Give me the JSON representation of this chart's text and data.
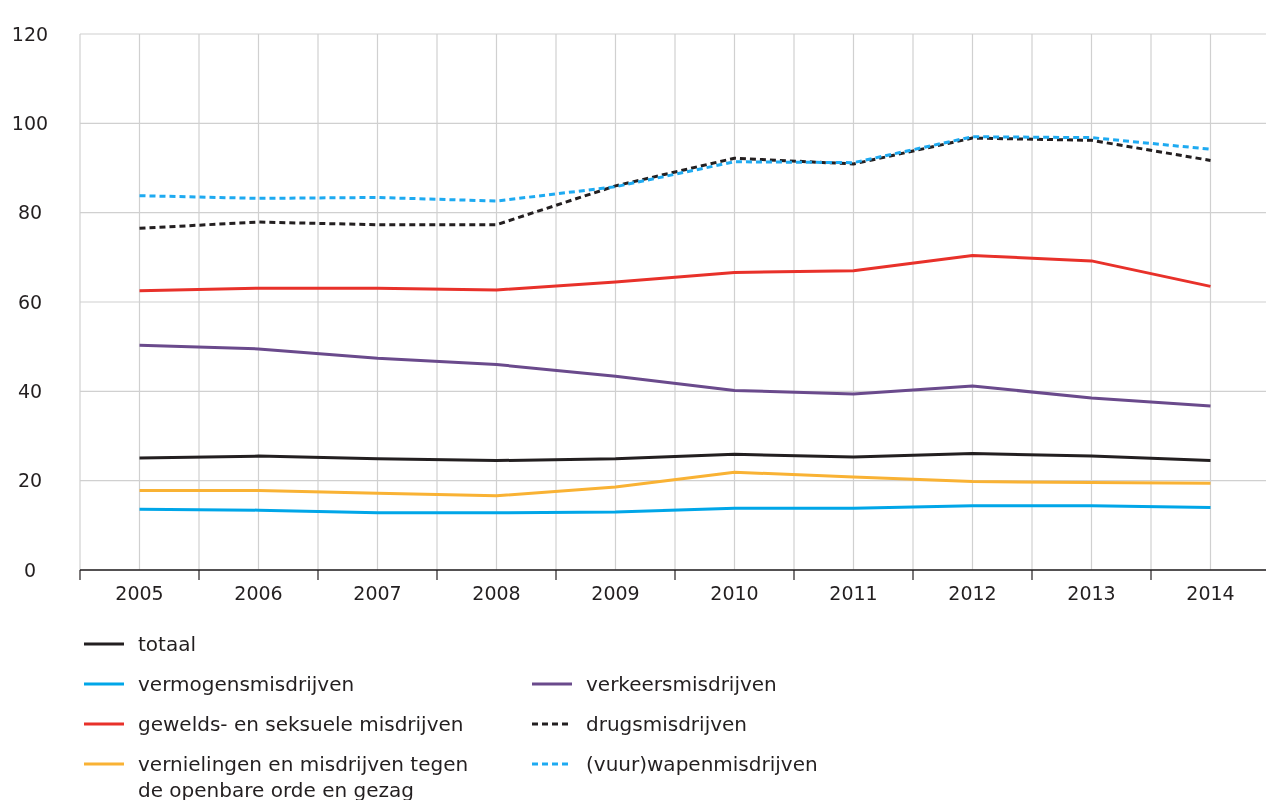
{
  "chart_data": {
    "type": "line",
    "x": [
      2005,
      2006,
      2007,
      2008,
      2009,
      2010,
      2011,
      2012,
      2013,
      2014
    ],
    "xlim": [
      2004.5,
      2014.5
    ],
    "xticks": [
      {
        "value": 2004.5,
        "label": null
      },
      2005,
      {
        "value": 2005.5,
        "label": null
      },
      2006,
      {
        "value": 2006.5,
        "label": null
      },
      2007,
      {
        "value": 2007.5,
        "label": null
      },
      2008,
      {
        "value": 2008.5,
        "label": null
      },
      2009,
      {
        "value": 2009.5,
        "label": null
      },
      2010,
      {
        "value": 2010.5,
        "label": null
      },
      2011,
      {
        "value": 2011.5,
        "label": null
      },
      2012,
      {
        "value": 2012.5,
        "label": null
      },
      2013,
      {
        "value": 2013.5,
        "label": null
      },
      2014,
      {
        "value": 2014.5,
        "label": null
      }
    ],
    "ylim": [
      0,
      120
    ],
    "yticks": [
      0,
      20,
      40,
      60,
      80,
      100,
      120
    ],
    "grid": true,
    "legend": "bottom",
    "marker": "none",
    "series": [
      {
        "name": "totaal",
        "color": "#231f20",
        "values": [
          25.1,
          25.5,
          24.9,
          24.5,
          24.9,
          25.9,
          25.3,
          26.1,
          25.5,
          24.5
        ]
      },
      {
        "name": "vermogensmisdrijven",
        "color": "#00a6e8",
        "values": [
          13.6,
          13.4,
          12.8,
          12.8,
          13.0,
          13.8,
          13.8,
          14.4,
          14.4,
          14.0
        ]
      },
      {
        "name": "gewelds- en seksuele misdrijven",
        "color": "#e8312a",
        "values": [
          62.5,
          63.1,
          63.1,
          62.7,
          64.5,
          66.6,
          67.0,
          70.4,
          69.2,
          63.5
        ]
      },
      {
        "name": "vernielingen en misdrijven tegen de openbare orde en gezag",
        "color": "#f9b234",
        "values": [
          17.8,
          17.8,
          17.2,
          16.6,
          18.6,
          21.9,
          20.8,
          19.8,
          19.6,
          19.4
        ]
      },
      {
        "name": "verkeersmisdrijven",
        "color": "#6a4a8c",
        "values": [
          50.3,
          49.5,
          47.4,
          46.0,
          43.4,
          40.2,
          39.4,
          41.2,
          38.5,
          36.7
        ]
      },
      {
        "name": "drugsmisdrijven",
        "color": "#231f20",
        "line_style": "dashed",
        "values": [
          76.5,
          77.9,
          77.3,
          77.3,
          86.0,
          92.2,
          90.9,
          96.7,
          96.2,
          91.7
        ]
      },
      {
        "name": "(vuur)wapenmisdrijven",
        "color": "#1eaaf1",
        "line_style": "dashed",
        "values": [
          83.8,
          83.2,
          83.4,
          82.6,
          85.8,
          91.4,
          91.2,
          97.0,
          96.8,
          94.2
        ]
      }
    ]
  }
}
